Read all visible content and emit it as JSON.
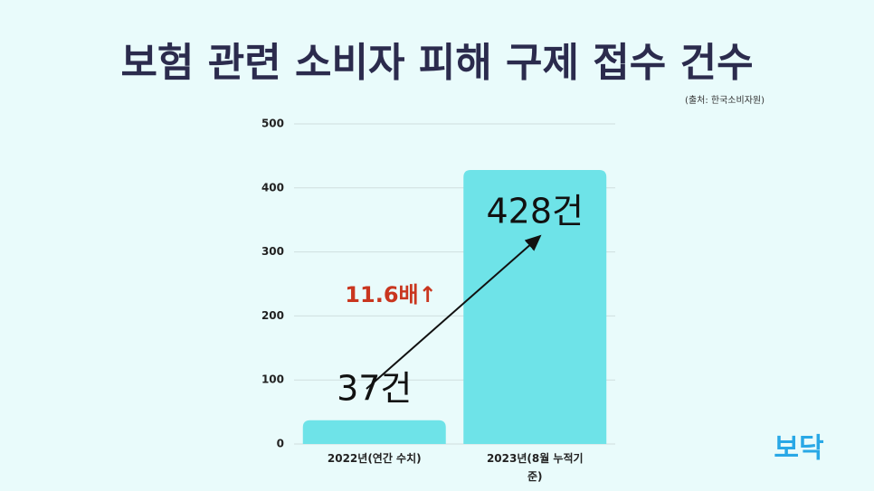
{
  "chart_data": {
    "type": "bar",
    "title": "보험 관련 소비자 피해 구제 접수 건수",
    "source": "(출처: 한국소비자원)",
    "categories": [
      "2022년(연간 수치)",
      "2023년(8월 누적기준)"
    ],
    "values": [
      37,
      428
    ],
    "value_labels": [
      "37건",
      "428건"
    ],
    "annotation": "11.6배↑",
    "color": "#6ee3e8",
    "ylim": [
      0,
      500
    ],
    "yticks": [
      0,
      100,
      200,
      300,
      400,
      500
    ],
    "grid": true,
    "logo": "보닥"
  }
}
